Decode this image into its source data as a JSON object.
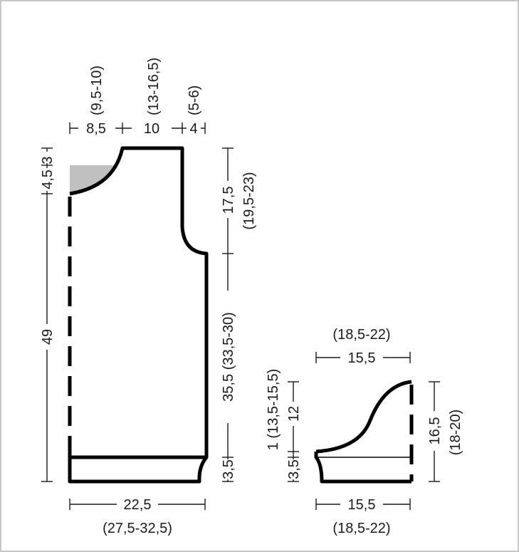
{
  "back": {
    "top_shoulder": "8,5",
    "top_shoulder_alt": "(9,5-10)",
    "top_neck": "10",
    "top_neck_alt": "(13-16,5)",
    "top_armhole": "4",
    "top_armhole_alt": "(5-6)",
    "left_neck_depth": "4,5",
    "left_neck_depth_small": "3",
    "left_total": "49",
    "right_armhole": "17,5",
    "right_armhole_alt": "(19,5-23)",
    "right_body": "35,5 (33,5-30)",
    "right_rib": "3,5",
    "bottom_width": "22,5",
    "bottom_width_alt": "(27,5-32,5)"
  },
  "sleeve": {
    "top_width_alt": "(18,5-22)",
    "top_width": "15,5",
    "left_cap": "1 (13,5-15,5)",
    "left_body": "12",
    "left_rib": "3,5",
    "right_total": "16,5",
    "right_total_alt": "(18-20)",
    "bottom_width": "15,5",
    "bottom_width_alt": "(18,5-22)"
  },
  "colors": {
    "outline": "#000000",
    "shaded_neck": "#c0c0c0",
    "frame": "#c8c8c8"
  }
}
